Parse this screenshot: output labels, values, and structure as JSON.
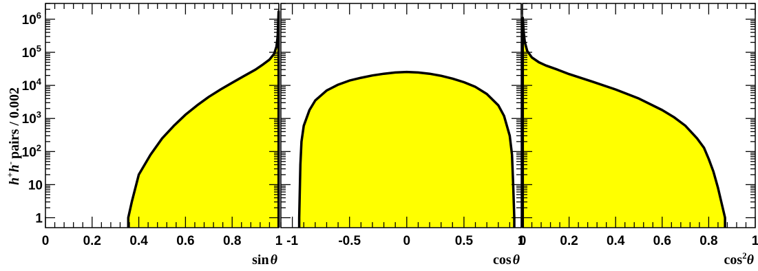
{
  "y_axis": {
    "label_main": "pairs / 0.002",
    "label_h1": "h",
    "label_sup1": "+",
    "label_h2": "h",
    "label_sup2": "-",
    "scale": "log",
    "ylim": [
      0.5,
      3000000
    ],
    "ticks": [
      {
        "value": 1,
        "label": "1"
      },
      {
        "value": 10,
        "label": "10"
      },
      {
        "value": 100,
        "label": "10",
        "exp": "2"
      },
      {
        "value": 1000,
        "label": "10",
        "exp": "3"
      },
      {
        "value": 10000,
        "label": "10",
        "exp": "4"
      },
      {
        "value": 100000,
        "label": "10",
        "exp": "5"
      },
      {
        "value": 1000000,
        "label": "10",
        "exp": "6"
      }
    ]
  },
  "colors": {
    "fill": "#ffff00",
    "line": "#000000",
    "frame": "#000000"
  },
  "chart_data": [
    {
      "type": "area",
      "xlabel_main": "sin",
      "xlabel_sym": "θ",
      "xlabel_sup": "",
      "xlim": [
        0,
        1.0
      ],
      "xticks": [
        {
          "value": 0,
          "label": "0"
        },
        {
          "value": 0.2,
          "label": "0.2"
        },
        {
          "value": 0.4,
          "label": "0.4"
        },
        {
          "value": 0.6,
          "label": "0.6"
        },
        {
          "value": 0.8,
          "label": "0.8"
        },
        {
          "value": 1.0,
          "label": "1"
        }
      ],
      "x": [
        0.355,
        0.37,
        0.4,
        0.45,
        0.5,
        0.55,
        0.6,
        0.65,
        0.7,
        0.75,
        0.8,
        0.85,
        0.9,
        0.93,
        0.96,
        0.98,
        0.99,
        0.995,
        0.999
      ],
      "y": [
        1,
        3,
        20,
        80,
        250,
        600,
        1300,
        2500,
        4500,
        7500,
        12000,
        19000,
        30000,
        42000,
        60000,
        90000,
        150000,
        300000,
        1700000
      ]
    },
    {
      "type": "area",
      "xlabel_main": "cos",
      "xlabel_sym": "θ",
      "xlabel_sup": "",
      "xlim": [
        -1.1,
        1.0
      ],
      "xticks": [
        {
          "value": -1,
          "label": "-1"
        },
        {
          "value": -0.5,
          "label": "-0.5"
        },
        {
          "value": 0,
          "label": "0"
        },
        {
          "value": 0.5,
          "label": "0.5"
        },
        {
          "value": 1,
          "label": "1"
        }
      ],
      "x": [
        -0.94,
        -0.93,
        -0.92,
        -0.9,
        -0.85,
        -0.8,
        -0.7,
        -0.6,
        -0.5,
        -0.4,
        -0.3,
        -0.2,
        -0.1,
        0.0,
        0.1,
        0.2,
        0.3,
        0.4,
        0.5,
        0.6,
        0.7,
        0.8,
        0.85,
        0.9,
        0.92,
        0.93,
        0.94
      ],
      "y": [
        1,
        40,
        200,
        600,
        1800,
        3500,
        7000,
        10500,
        14000,
        17000,
        20000,
        22500,
        24500,
        25500,
        24500,
        22500,
        19500,
        16000,
        12500,
        9000,
        5500,
        2500,
        1200,
        300,
        80,
        10,
        1
      ]
    },
    {
      "type": "area",
      "xlabel_main": "cos",
      "xlabel_sym": "θ",
      "xlabel_sup": "2",
      "xlim": [
        0,
        1.0
      ],
      "xticks": [
        {
          "value": 0,
          "label": "0"
        },
        {
          "value": 0.2,
          "label": "0.2"
        },
        {
          "value": 0.4,
          "label": "0.4"
        },
        {
          "value": 0.6,
          "label": "0.6"
        },
        {
          "value": 0.8,
          "label": "0.8"
        },
        {
          "value": 1.0,
          "label": "1"
        }
      ],
      "x": [
        0.001,
        0.005,
        0.01,
        0.02,
        0.04,
        0.07,
        0.1,
        0.15,
        0.2,
        0.3,
        0.4,
        0.5,
        0.6,
        0.65,
        0.7,
        0.75,
        0.78,
        0.8,
        0.82,
        0.84,
        0.85,
        0.86,
        0.87
      ],
      "y": [
        1100000,
        400000,
        200000,
        110000,
        70000,
        50000,
        40000,
        30000,
        22000,
        13000,
        7500,
        4000,
        1800,
        1100,
        600,
        250,
        130,
        60,
        25,
        8,
        4,
        2,
        1
      ]
    }
  ]
}
